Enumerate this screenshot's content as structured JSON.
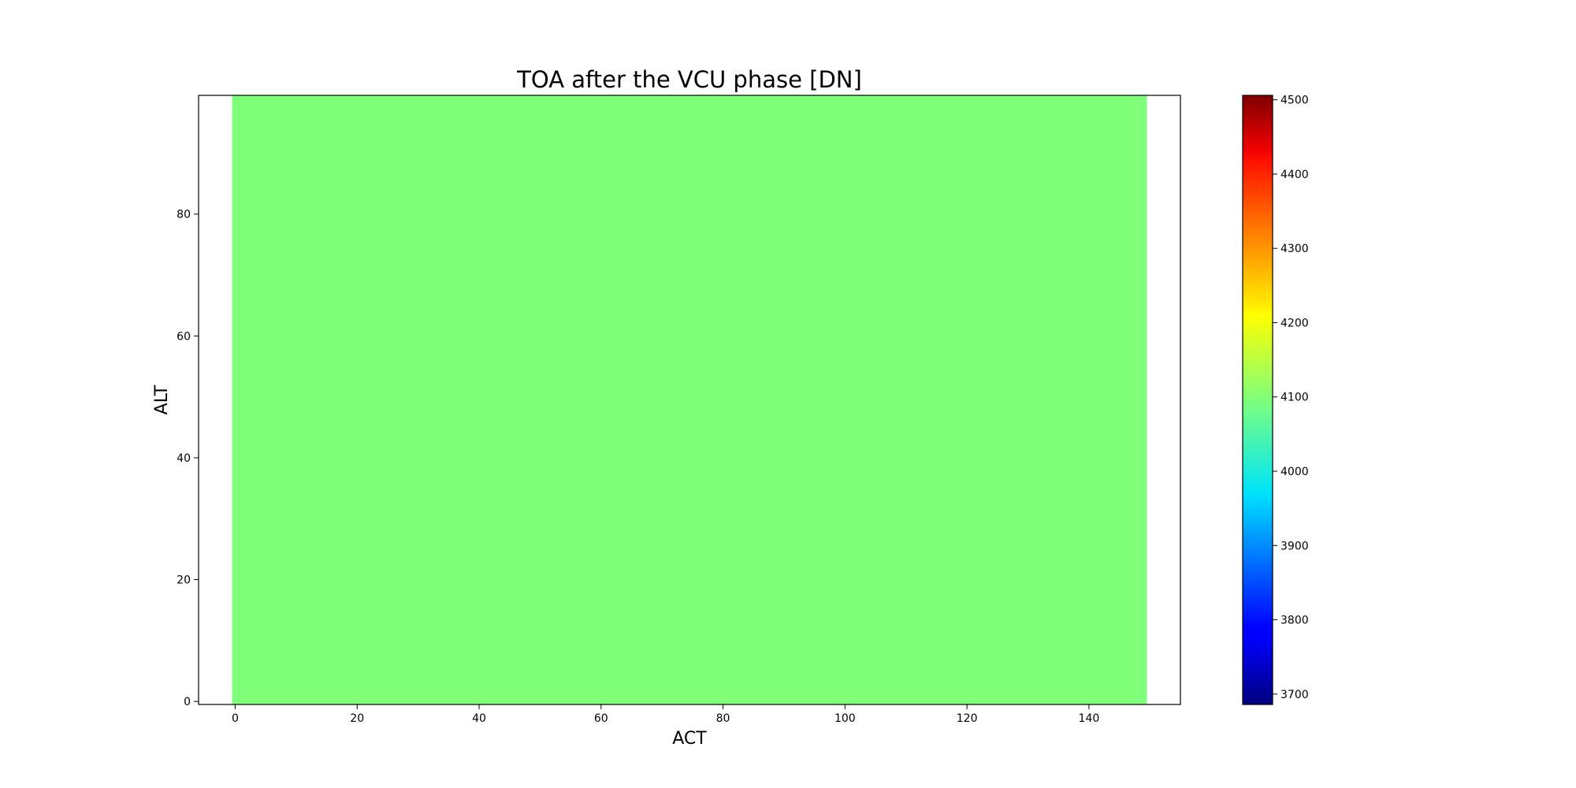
{
  "chart_data": {
    "type": "heatmap",
    "title": "TOA after the VCU phase [DN]",
    "xlabel": "ACT",
    "ylabel": "ALT",
    "xlim": [
      -6,
      155
    ],
    "ylim": [
      -0.5,
      99.5
    ],
    "x_ticks": [
      0,
      20,
      40,
      60,
      80,
      100,
      120,
      140
    ],
    "y_ticks": [
      0,
      20,
      40,
      60,
      80
    ],
    "data_extent": {
      "x": [
        -0.5,
        149.5
      ],
      "y": [
        -0.5,
        99.5
      ]
    },
    "uniform_value": 4110,
    "colormap": "jet",
    "fill_color": "#7fff7a",
    "colorbar": {
      "vmin": 3686,
      "vmax": 4506,
      "ticks": [
        3700,
        3800,
        3900,
        4000,
        4100,
        4200,
        4300,
        4400,
        4500
      ]
    },
    "grid": false
  }
}
